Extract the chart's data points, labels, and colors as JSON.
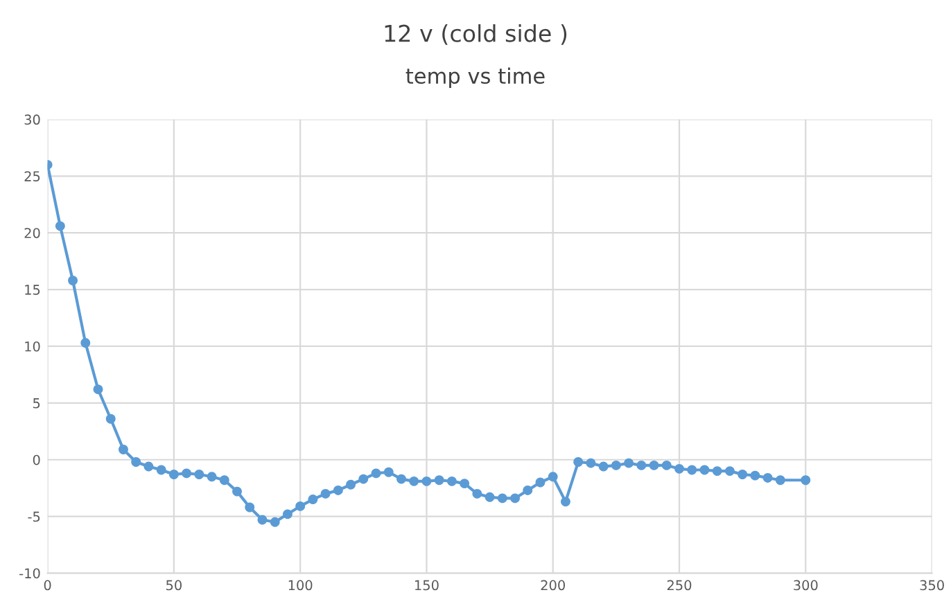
{
  "chart_data": {
    "type": "line",
    "title": "12 v (cold side )",
    "subtitle": "temp vs time",
    "x": [
      0,
      5,
      10,
      15,
      20,
      25,
      30,
      35,
      40,
      45,
      50,
      55,
      60,
      65,
      70,
      75,
      80,
      85,
      90,
      95,
      100,
      105,
      110,
      115,
      120,
      125,
      130,
      135,
      140,
      145,
      150,
      155,
      160,
      165,
      170,
      175,
      180,
      185,
      190,
      195,
      200,
      205,
      210,
      215,
      220,
      225,
      230,
      235,
      240,
      245,
      250,
      255,
      260,
      265,
      270,
      275,
      280,
      285,
      290,
      300
    ],
    "series": [
      {
        "color": "#5b9bd5",
        "values": [
          26,
          20.6,
          15.8,
          10.3,
          6.2,
          3.6,
          0.9,
          -0.2,
          -0.6,
          -0.9,
          -1.3,
          -1.2,
          -1.3,
          -1.5,
          -1.8,
          -2.8,
          -4.2,
          -5.3,
          -5.5,
          -4.8,
          -4.1,
          -3.5,
          -3.0,
          -2.7,
          -2.2,
          -1.7,
          -1.2,
          -1.1,
          -1.7,
          -1.9,
          -1.9,
          -1.8,
          -1.9,
          -2.1,
          -3.0,
          -3.3,
          -3.4,
          -3.4,
          -2.7,
          -2.0,
          -1.5,
          -3.7,
          -0.2,
          -0.3,
          -0.6,
          -0.5,
          -0.3,
          -0.5,
          -0.5,
          -0.5,
          -0.8,
          -0.9,
          -0.9,
          -1.0,
          -1.0,
          -1.3,
          -1.4,
          -1.6,
          -1.8,
          -1.8
        ]
      }
    ],
    "xlim": [
      0,
      350
    ],
    "xticks": [
      0,
      50,
      100,
      150,
      200,
      250,
      300,
      350
    ],
    "ylim": [
      -10,
      30
    ],
    "yticks": [
      -10,
      -5,
      0,
      5,
      10,
      15,
      20,
      25,
      30
    ],
    "grid": true,
    "marker": "circle",
    "line_style": "solid"
  }
}
